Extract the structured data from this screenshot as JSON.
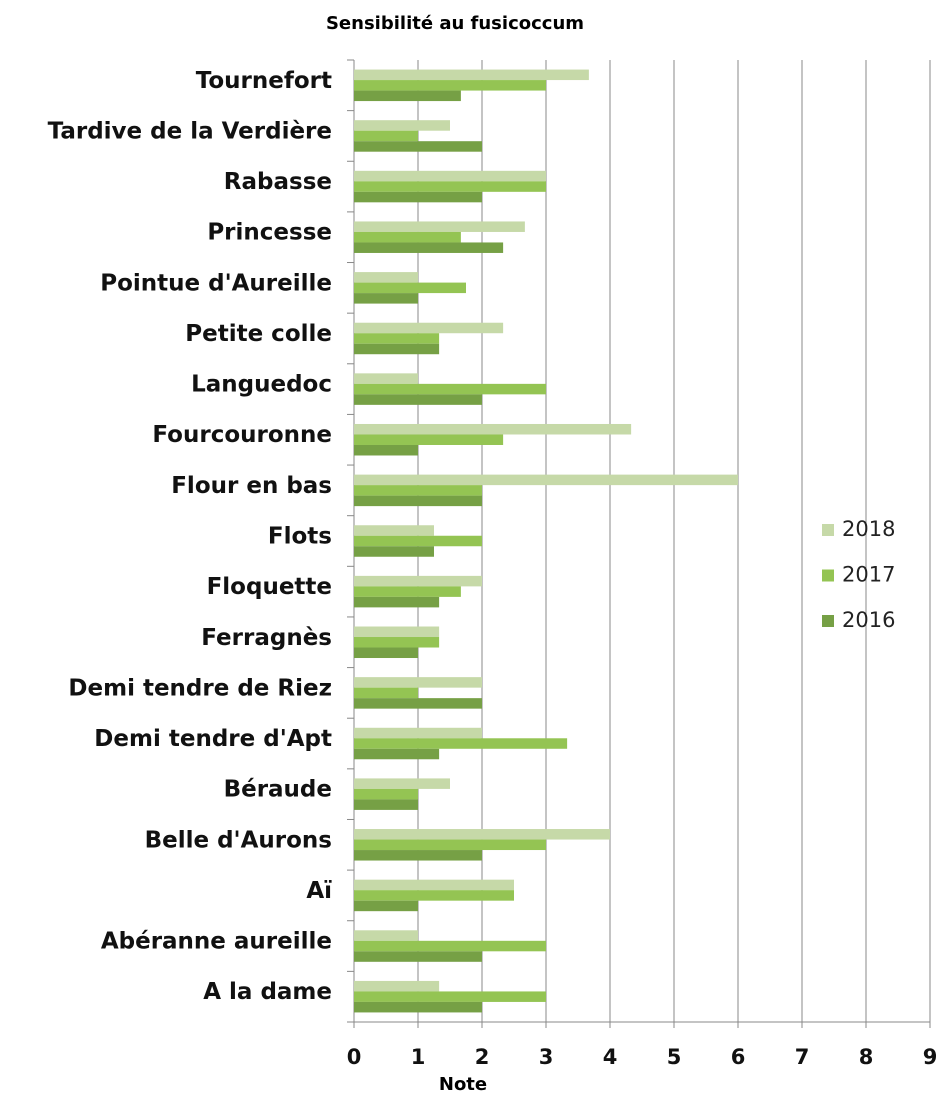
{
  "chart_data": {
    "type": "barh",
    "title": "Sensibilité au fusicoccum",
    "x_label": "Note",
    "categories": [
      "Tournefort",
      "Tardive de la Verdière",
      "Rabasse",
      "Princesse",
      "Pointue d'Aureille",
      "Petite colle",
      "Languedoc",
      "Fourcouronne",
      "Flour en bas",
      "Flots",
      "Floquette",
      "Ferragnès",
      "Demi tendre de Riez",
      "Demi tendre d'Apt",
      "Béraude",
      "Belle d'Aurons",
      "Aï",
      "Abéranne aureille",
      "A la dame"
    ],
    "series": [
      {
        "name": "2018",
        "color": "#c6d9a8",
        "values": [
          3.67,
          1.5,
          3,
          2.67,
          1,
          2.33,
          1,
          4.33,
          6,
          1.25,
          2,
          1.33,
          2,
          2,
          1.5,
          4,
          2.5,
          1,
          1.33
        ]
      },
      {
        "name": "2017",
        "color": "#94c453",
        "values": [
          3,
          1,
          3,
          1.67,
          1.75,
          1.33,
          3,
          2.33,
          2,
          2,
          1.67,
          1.33,
          1,
          3.33,
          1,
          3,
          2.5,
          3,
          3
        ]
      },
      {
        "name": "2016",
        "color": "#76a045",
        "values": [
          1.67,
          2,
          2,
          2.33,
          1,
          1.33,
          2,
          1,
          2,
          1.25,
          1.33,
          1,
          2,
          1.33,
          1,
          2,
          1,
          2,
          2
        ]
      }
    ],
    "xlim": [
      0,
      9
    ],
    "xticks": [
      0,
      1,
      2,
      3,
      4,
      5,
      6,
      7,
      8,
      9
    ],
    "grid": true,
    "legend": "right"
  }
}
